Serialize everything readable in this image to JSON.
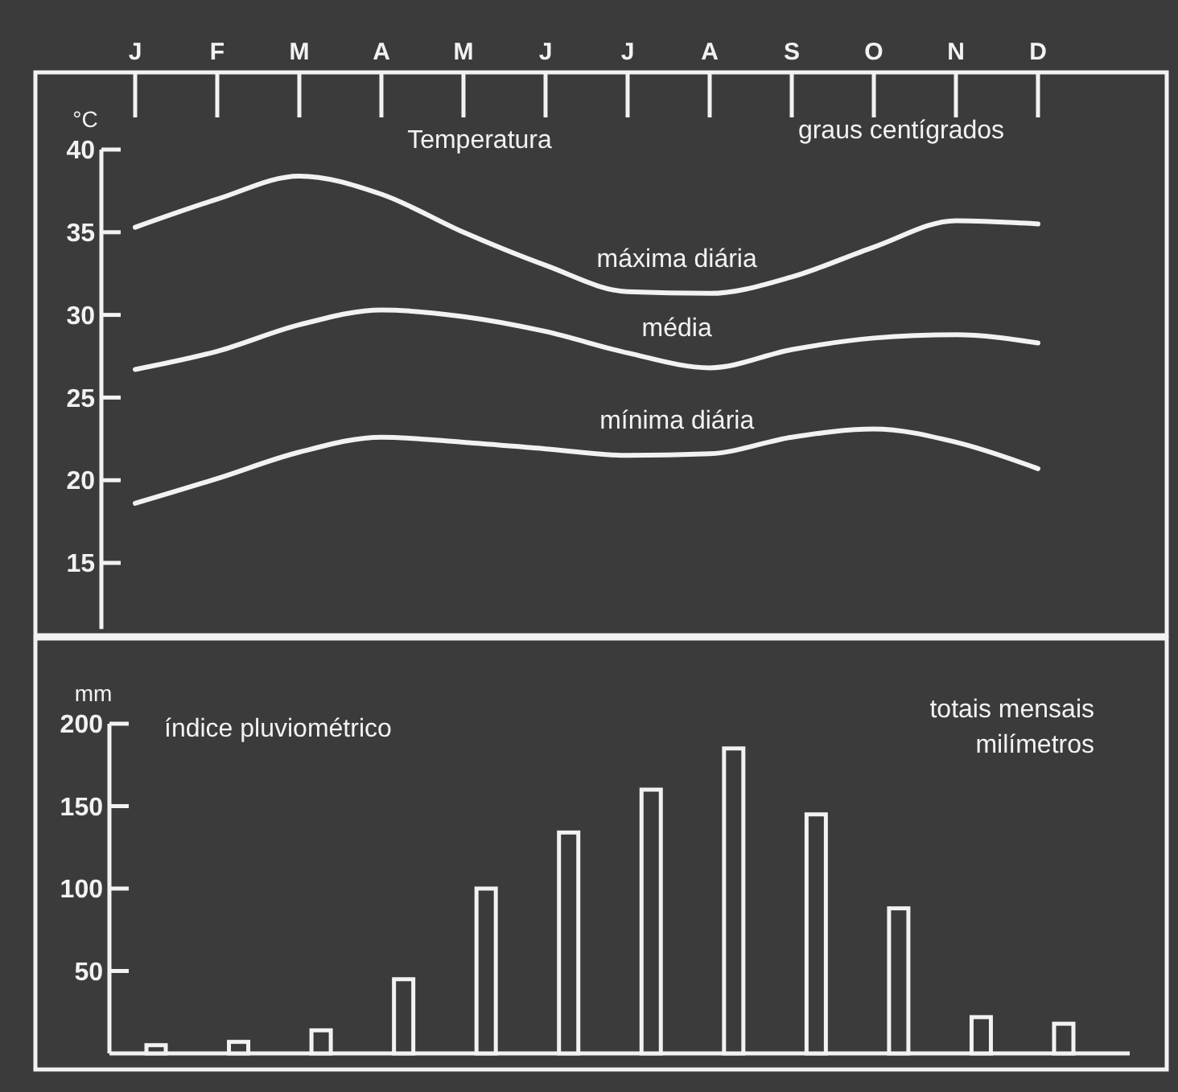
{
  "chart_data": [
    {
      "type": "line",
      "ylabel": "°C",
      "categories": [
        "J",
        "F",
        "M",
        "A",
        "M",
        "J",
        "J",
        "A",
        "S",
        "O",
        "N",
        "D"
      ],
      "ylim": [
        11,
        40
      ],
      "yticks": [
        15,
        20,
        25,
        30,
        35,
        40
      ],
      "grid": false,
      "marker": "none",
      "line_style": "solid",
      "annotations": [
        "Temperatura",
        "graus centígrados"
      ],
      "series": [
        {
          "name": "máxima diária",
          "color": "#f2f2f2",
          "values": [
            35.3,
            37,
            38.4,
            37.3,
            35,
            33,
            31.4,
            31.3,
            32.3,
            34.1,
            35.7,
            35.5
          ]
        },
        {
          "name": "média",
          "color": "#f2f2f2",
          "values": [
            26.7,
            27.8,
            29.4,
            30.3,
            29.9,
            29,
            27.7,
            26.8,
            27.9,
            28.6,
            28.8,
            28.3
          ]
        },
        {
          "name": "mínima diária",
          "color": "#f2f2f2",
          "values": [
            18.6,
            20.1,
            21.7,
            22.6,
            22.3,
            21.9,
            21.5,
            21.6,
            22.6,
            23.1,
            22.3,
            20.7
          ]
        }
      ]
    },
    {
      "type": "bar",
      "ylabel": "mm",
      "categories": [
        null,
        null,
        null,
        null,
        null,
        null,
        null,
        null,
        null,
        null,
        null,
        null
      ],
      "ylim": [
        0,
        200
      ],
      "yticks": [
        50,
        100,
        150,
        200
      ],
      "grid": false,
      "annotations": [
        "índice pluviométrico",
        "totais mensais\nmilímetros"
      ],
      "series": [
        {
          "color": "#f2f2f2",
          "values": [
            5,
            7,
            14,
            45,
            100,
            134,
            160,
            185,
            145,
            88,
            22,
            18
          ]
        }
      ]
    }
  ]
}
